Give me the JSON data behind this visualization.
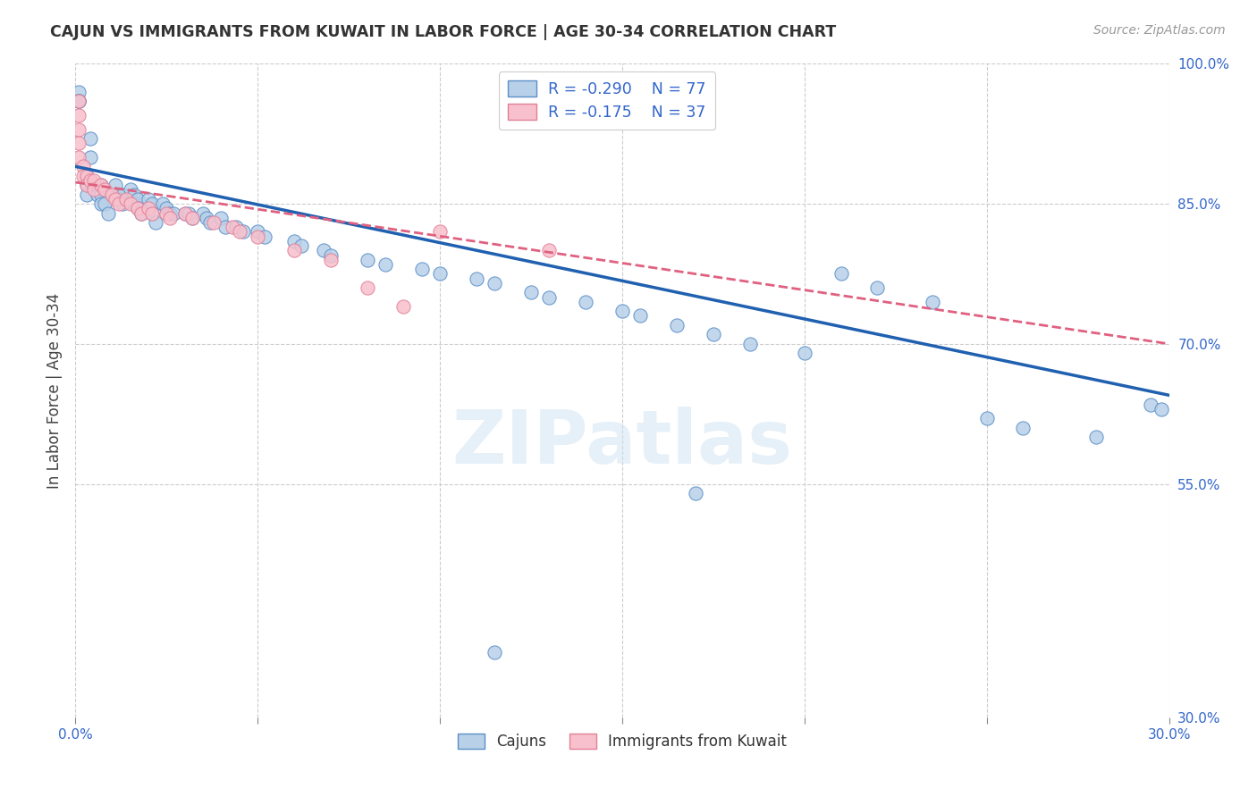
{
  "title": "CAJUN VS IMMIGRANTS FROM KUWAIT IN LABOR FORCE | AGE 30-34 CORRELATION CHART",
  "source": "Source: ZipAtlas.com",
  "ylabel": "In Labor Force | Age 30-34",
  "xmin": 0.0,
  "xmax": 0.3,
  "ymin": 0.3,
  "ymax": 1.0,
  "x_ticks": [
    0.0,
    0.05,
    0.1,
    0.15,
    0.2,
    0.25,
    0.3
  ],
  "y_ticks_right": [
    1.0,
    0.85,
    0.7,
    0.55,
    0.3
  ],
  "y_tick_labels_right": [
    "100.0%",
    "85.0%",
    "70.0%",
    "55.0%",
    "30.0%"
  ],
  "legend_blue_label": "Cajuns",
  "legend_pink_label": "Immigrants from Kuwait",
  "R_blue": "-0.290",
  "N_blue": "77",
  "R_pink": "-0.175",
  "N_pink": "37",
  "blue_color": "#b8d0e8",
  "blue_edge_color": "#5b8fc8",
  "pink_color": "#f8c0cc",
  "pink_edge_color": "#e08098",
  "blue_line_color": "#2060b0",
  "pink_line_color": "#e06080",
  "watermark": "ZIPatlas",
  "blue_scatter_x": [
    0.001,
    0.001,
    0.001,
    0.001,
    0.001,
    0.003,
    0.003,
    0.003,
    0.004,
    0.004,
    0.006,
    0.006,
    0.007,
    0.007,
    0.007,
    0.008,
    0.009,
    0.011,
    0.012,
    0.012,
    0.013,
    0.013,
    0.015,
    0.016,
    0.016,
    0.017,
    0.017,
    0.018,
    0.02,
    0.021,
    0.021,
    0.022,
    0.024,
    0.025,
    0.026,
    0.027,
    0.03,
    0.031,
    0.032,
    0.035,
    0.036,
    0.037,
    0.04,
    0.041,
    0.044,
    0.046,
    0.05,
    0.052,
    0.06,
    0.062,
    0.068,
    0.07,
    0.08,
    0.085,
    0.095,
    0.1,
    0.11,
    0.115,
    0.125,
    0.13,
    0.14,
    0.15,
    0.155,
    0.165,
    0.175,
    0.185,
    0.2,
    0.21,
    0.22,
    0.235,
    0.25,
    0.26,
    0.28,
    0.295,
    0.298,
    0.115,
    0.17
  ],
  "blue_scatter_y": [
    0.97,
    0.96,
    0.96,
    0.96,
    0.96,
    0.88,
    0.87,
    0.86,
    0.92,
    0.9,
    0.87,
    0.86,
    0.87,
    0.86,
    0.85,
    0.85,
    0.84,
    0.87,
    0.86,
    0.855,
    0.86,
    0.85,
    0.865,
    0.86,
    0.85,
    0.855,
    0.845,
    0.84,
    0.855,
    0.85,
    0.84,
    0.83,
    0.85,
    0.845,
    0.84,
    0.84,
    0.84,
    0.84,
    0.835,
    0.84,
    0.835,
    0.83,
    0.835,
    0.825,
    0.825,
    0.82,
    0.82,
    0.815,
    0.81,
    0.805,
    0.8,
    0.795,
    0.79,
    0.785,
    0.78,
    0.775,
    0.77,
    0.765,
    0.755,
    0.75,
    0.745,
    0.735,
    0.73,
    0.72,
    0.71,
    0.7,
    0.69,
    0.775,
    0.76,
    0.745,
    0.62,
    0.61,
    0.6,
    0.635,
    0.63,
    0.37,
    0.54
  ],
  "pink_scatter_x": [
    0.001,
    0.001,
    0.001,
    0.001,
    0.001,
    0.002,
    0.002,
    0.003,
    0.003,
    0.004,
    0.005,
    0.005,
    0.007,
    0.008,
    0.01,
    0.011,
    0.012,
    0.014,
    0.015,
    0.017,
    0.018,
    0.02,
    0.021,
    0.025,
    0.026,
    0.03,
    0.032,
    0.038,
    0.043,
    0.045,
    0.05,
    0.06,
    0.07,
    0.08,
    0.09,
    0.1,
    0.13
  ],
  "pink_scatter_y": [
    0.96,
    0.945,
    0.93,
    0.915,
    0.9,
    0.89,
    0.88,
    0.88,
    0.87,
    0.875,
    0.875,
    0.865,
    0.87,
    0.865,
    0.86,
    0.855,
    0.85,
    0.855,
    0.85,
    0.845,
    0.84,
    0.845,
    0.84,
    0.84,
    0.835,
    0.84,
    0.835,
    0.83,
    0.825,
    0.82,
    0.815,
    0.8,
    0.79,
    0.76,
    0.74,
    0.82,
    0.8
  ],
  "blue_trendline_x": [
    0.0,
    0.3
  ],
  "blue_trendline_y": [
    0.89,
    0.645
  ],
  "pink_trendline_x": [
    0.0,
    0.3
  ],
  "pink_trendline_y": [
    0.873,
    0.7
  ]
}
